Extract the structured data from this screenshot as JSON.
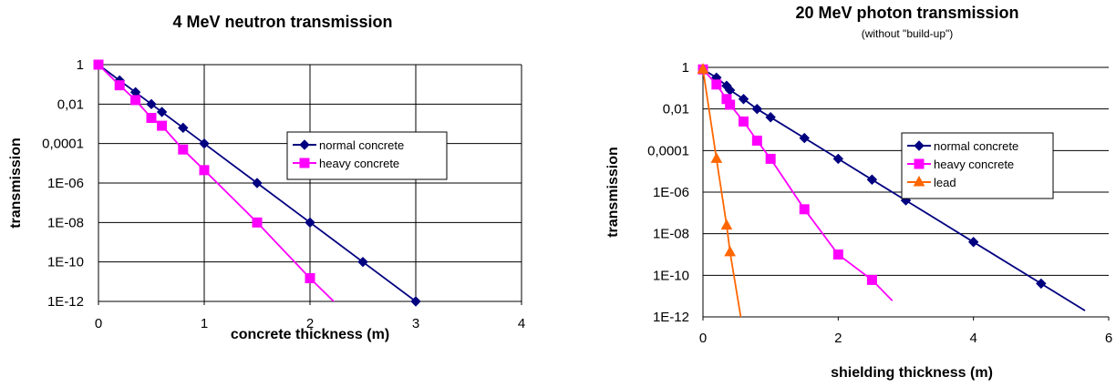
{
  "chart_data": [
    {
      "type": "line",
      "title": "4 MeV neutron transmission",
      "subtitle": "",
      "xlabel": "concrete thickness (m)",
      "ylabel": "transmission",
      "xlim": [
        0,
        4
      ],
      "ylim": [
        1e-12,
        1
      ],
      "yscale": "log",
      "x_ticks": [
        "0",
        "1",
        "2",
        "3",
        "4"
      ],
      "y_ticks": [
        "1",
        "0,01",
        "0,0001",
        "1E-06",
        "1E-08",
        "1E-10",
        "1E-12"
      ],
      "grid": "horizontal and vertical",
      "legend_position": "center-right",
      "series": [
        {
          "name": "normal concrete",
          "color": "#000080",
          "marker": "diamond",
          "x": [
            0,
            0.2,
            0.35,
            0.5,
            0.6,
            0.8,
            1.0,
            1.5,
            2.0,
            2.5,
            3.0
          ],
          "y": [
            1,
            0.158,
            0.04,
            0.01,
            0.004,
            0.00063,
            0.0001,
            1e-06,
            1e-08,
            1e-10,
            1e-12
          ],
          "line_to": [
            4.0,
            1e-16
          ]
        },
        {
          "name": "heavy concrete",
          "color": "#FF00FF",
          "marker": "square",
          "x": [
            0,
            0.2,
            0.35,
            0.5,
            0.6,
            0.8,
            1.0,
            1.5,
            2.0
          ],
          "y": [
            1,
            0.09,
            0.016,
            0.002,
            0.0008,
            5e-05,
            4.5e-06,
            1e-08,
            1.5e-11
          ],
          "line_to": [
            2.3,
            4e-13
          ]
        }
      ]
    },
    {
      "type": "line",
      "title": "20 MeV photon transmission",
      "subtitle": "(without \"build-up\")",
      "xlabel": "shielding thickness (m)",
      "ylabel": "transmission",
      "xlim": [
        0,
        6
      ],
      "ylim": [
        1e-12,
        1
      ],
      "yscale": "log",
      "x_ticks": [
        "0",
        "2",
        "4",
        "6"
      ],
      "y_ticks": [
        "1",
        "0,01",
        "0,0001",
        "1E-06",
        "1E-08",
        "1E-10",
        "1E-12"
      ],
      "grid": "horizontal only",
      "legend_position": "top-right",
      "series": [
        {
          "name": "normal concrete",
          "color": "#000080",
          "marker": "diamond",
          "x": [
            0,
            0.2,
            0.35,
            0.4,
            0.6,
            0.8,
            1.0,
            1.5,
            2.0,
            2.5,
            3.0,
            4.0,
            5.0
          ],
          "y": [
            0.8,
            0.32,
            0.13,
            0.08,
            0.03,
            0.01,
            0.004,
            0.0004,
            4e-05,
            4e-06,
            4e-07,
            4e-09,
            4e-11
          ],
          "line_to": [
            5.65,
            2e-12
          ]
        },
        {
          "name": "heavy concrete",
          "color": "#FF00FF",
          "marker": "square",
          "x": [
            0,
            0.2,
            0.35,
            0.4,
            0.6,
            0.8,
            1.0,
            1.5,
            2.0,
            2.5
          ],
          "y": [
            0.8,
            0.15,
            0.03,
            0.016,
            0.0025,
            0.0003,
            4e-05,
            1.5e-07,
            1e-09,
            6e-11
          ],
          "line_to": [
            2.8,
            6e-12
          ]
        },
        {
          "name": "lead",
          "color": "#FF6600",
          "marker": "triangle",
          "x": [
            0,
            0.2,
            0.35,
            0.4
          ],
          "y": [
            0.8,
            4e-05,
            2.5e-08,
            1.3e-09
          ],
          "line_to": [
            0.57,
            6e-13
          ]
        }
      ]
    }
  ]
}
